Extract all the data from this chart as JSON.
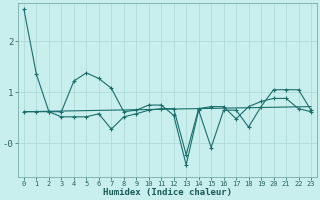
{
  "xlabel": "Humidex (Indice chaleur)",
  "bg_color": "#c8eeed",
  "grid_color": "#b0dbd9",
  "line_color": "#1a6e6a",
  "xlim": [
    -0.5,
    23.5
  ],
  "ylim": [
    -0.65,
    2.75
  ],
  "line1_x": [
    0,
    1,
    2,
    3,
    4,
    5,
    6,
    7,
    8,
    9,
    10,
    11,
    12,
    13,
    14,
    15,
    16,
    17,
    18,
    19,
    20,
    21,
    22,
    23
  ],
  "line1_y": [
    2.62,
    1.35,
    0.62,
    0.62,
    1.22,
    1.38,
    1.27,
    1.08,
    0.62,
    0.65,
    0.75,
    0.75,
    0.55,
    -0.42,
    0.65,
    -0.08,
    0.65,
    0.65,
    0.32,
    0.72,
    1.05,
    1.05,
    1.05,
    0.65
  ],
  "line2_x": [
    0,
    1,
    2,
    3,
    4,
    5,
    6,
    7,
    8,
    9,
    10,
    11,
    12,
    13,
    14,
    15,
    16,
    17,
    18,
    19,
    20,
    21,
    22,
    23
  ],
  "line2_y": [
    0.62,
    0.62,
    0.62,
    0.52,
    0.52,
    0.52,
    0.58,
    0.28,
    0.52,
    0.58,
    0.65,
    0.68,
    0.68,
    -0.22,
    0.68,
    0.72,
    0.72,
    0.48,
    0.72,
    0.82,
    0.88,
    0.88,
    0.68,
    0.62
  ],
  "line3_x": [
    0,
    23
  ],
  "line3_y": [
    0.62,
    0.72
  ]
}
